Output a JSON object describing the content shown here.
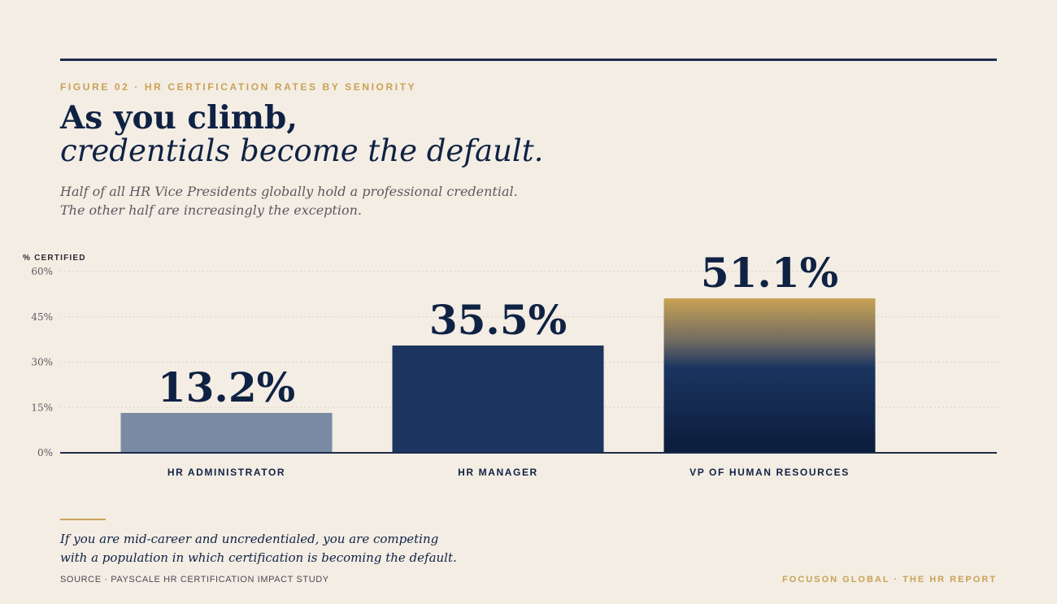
{
  "header": {
    "eyebrow": "FIGURE 02 · HR CERTIFICATION RATES BY SENIORITY",
    "headline": "As you climb,",
    "subhead": "credentials become the default.",
    "dek_lines": [
      "Half of all HR Vice Presidents globally hold a professional credential.",
      "The other half are increasingly the exception."
    ]
  },
  "chart_data": {
    "type": "bar",
    "ylabel": "% CERTIFIED",
    "ylim": [
      0,
      60
    ],
    "yticks": [
      0,
      15,
      30,
      45,
      60
    ],
    "ytick_labels": [
      "0%",
      "15%",
      "30%",
      "45%",
      "60%"
    ],
    "grid": true,
    "categories": [
      "HR ADMINISTRATOR",
      "HR MANAGER",
      "VP OF HUMAN RESOURCES"
    ],
    "values": [
      13.2,
      35.5,
      51.1
    ],
    "value_labels": [
      "13.2%",
      "35.5%",
      "51.1%"
    ],
    "bar_colors": [
      "#7a8aa3",
      "#1b3560",
      "gradient-gold-navy"
    ]
  },
  "colors": {
    "navy": "#0f2244",
    "gold": "#c9a254",
    "slate": "#7a8aa3",
    "background": "#f4ede4"
  },
  "footer": {
    "note_lines": [
      "If you are mid-career and uncredentialed, you are competing",
      "with a population in which certification is becoming the default."
    ],
    "source": "SOURCE · PAYSCALE HR CERTIFICATION IMPACT STUDY",
    "brand": "FOCUSON GLOBAL · THE HR REPORT"
  }
}
